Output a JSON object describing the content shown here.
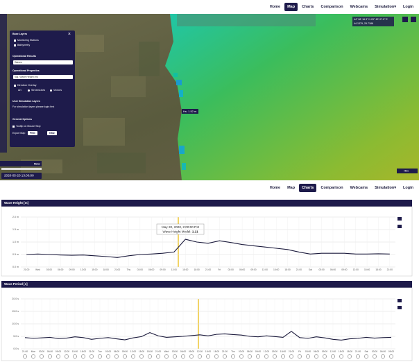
{
  "nav_top": {
    "items": [
      "Home",
      "Map",
      "Charts",
      "Comparison",
      "Webcams",
      "Simulation▾",
      "Login"
    ],
    "active": 1
  },
  "map": {
    "coordinates_dms": "44° 08' 16.3\" N 29° 43' 07.0\" E",
    "coordinates_decimal": "44.1379, 29.7186",
    "hover_tooltip": "Hs: 1.52 m",
    "time": "2020-05-20 13:00:00",
    "now_button": "Now",
    "hide_button": "Hide",
    "panel": {
      "base_layers": "Base Layers",
      "monitoring_stations": "Monitoring Stations",
      "bathymetry": "Bathymetry",
      "operational_results": "Operational Results",
      "results_select": "Waves",
      "operational_properties": "Operational Properties",
      "property_select": "Sig. Wave Height [m]",
      "direction_overlay": "Direction Overlay",
      "arrows_label": "Arr.",
      "streamlines": "StreamLines",
      "vectors": "Vectors",
      "user_layers": "User Simulation Layers",
      "user_layers_note": "For simulation layers please login first",
      "general_options": "General Options",
      "tooltip_option": "Tooltip on Mouse Stop",
      "export_map": "Export Map",
      "png": "PNG",
      "kmz": "KMZ"
    }
  },
  "nav_charts": {
    "items": [
      "Home",
      "Map",
      "Charts",
      "Comparison",
      "Webcams",
      "Simulation▾",
      "Login"
    ],
    "active": 2
  },
  "chart_data": [
    {
      "type": "line",
      "title": "Wave Height [m]",
      "categories": [
        "21:00",
        "Wed",
        "03:00",
        "06:00",
        "09:00",
        "12:00",
        "15:00",
        "18:00",
        "21:00",
        "Thu",
        "03:00",
        "06:00",
        "09:00",
        "12:00",
        "15:00",
        "18:00",
        "21:00",
        "Fri",
        "03:00",
        "06:00",
        "09:00",
        "12:00",
        "15:00",
        "18:00",
        "21:00",
        "Sat",
        "03:00",
        "06:00",
        "09:00",
        "12:00",
        "15:00",
        "18:00",
        "21:00"
      ],
      "series": [
        {
          "name": "Wave Height Model",
          "color": "#1b1a3c",
          "values": [
            0.5,
            0.52,
            0.5,
            0.48,
            0.47,
            0.48,
            0.45,
            0.42,
            0.38,
            0.45,
            0.5,
            0.52,
            0.55,
            0.6,
            1.11,
            1.0,
            0.95,
            1.05,
            0.98,
            0.9,
            0.85,
            0.8,
            0.75,
            0.7,
            0.6,
            0.52,
            0.55,
            0.55,
            0.55,
            0.52,
            0.52,
            0.53,
            0.52
          ]
        }
      ],
      "ylim": [
        0,
        2
      ],
      "yticks": [
        {
          "value": 0,
          "label": "0.0 m"
        },
        {
          "value": 0.5,
          "label": "0.5 m"
        },
        {
          "value": 1,
          "label": "1.0 m"
        },
        {
          "value": 1.5,
          "label": "1.5 m"
        },
        {
          "value": 2,
          "label": "2.0 m"
        }
      ],
      "grid": true,
      "tooltip": {
        "title": "May 20, 2020, 2:00:00 PM"
      }
    },
    {
      "type": "line",
      "title": "Wave Period [s]",
      "categories": [
        "21:00",
        "Mon",
        "03:00",
        "06:00",
        "09:00",
        "12:00",
        "15:00",
        "18:00",
        "21:00",
        "Tue",
        "03:00",
        "06:00",
        "09:00",
        "12:00",
        "15:00",
        "18:00",
        "21:00",
        "Wed",
        "03:00",
        "06:00",
        "09:00",
        "12:00",
        "15:00",
        "18:00",
        "21:00",
        "Thu",
        "03:00",
        "06:00",
        "09:00",
        "12:00",
        "15:00",
        "18:00",
        "21:00",
        "Fri",
        "03:00",
        "06:00",
        "09:00",
        "12:00",
        "15:00",
        "18:00",
        "21:00",
        "Sat",
        "03:00",
        "06:00",
        "09:00"
      ],
      "series": [
        {
          "color": "#1b1a3c",
          "values": [
            4.5,
            4.2,
            4.4,
            4.6,
            4.1,
            4.3,
            4.8,
            4.5,
            3.8,
            4.2,
            4.5,
            4.0,
            3.6,
            4.4,
            4.9,
            6.5,
            5.2,
            4.6,
            4.8,
            5.0,
            5.3,
            5.6,
            5.2,
            5.8,
            6.0,
            5.7,
            5.5,
            5.0,
            4.8,
            5.2,
            4.9,
            4.6,
            7.0,
            4.5,
            4.2,
            4.8,
            4.4,
            3.8,
            3.5,
            4.0,
            4.2,
            4.6,
            4.3,
            4.5,
            4.6
          ]
        }
      ],
      "ylim": [
        0,
        20
      ],
      "yticks": [
        {
          "value": 0,
          "label": "0.0 s"
        },
        {
          "value": 5,
          "label": "5.0 s"
        },
        {
          "value": 10,
          "label": "10.0 s"
        },
        {
          "value": 15,
          "label": "15.0 s"
        },
        {
          "value": 20,
          "label": "20.0 s"
        }
      ],
      "grid": true
    }
  ]
}
